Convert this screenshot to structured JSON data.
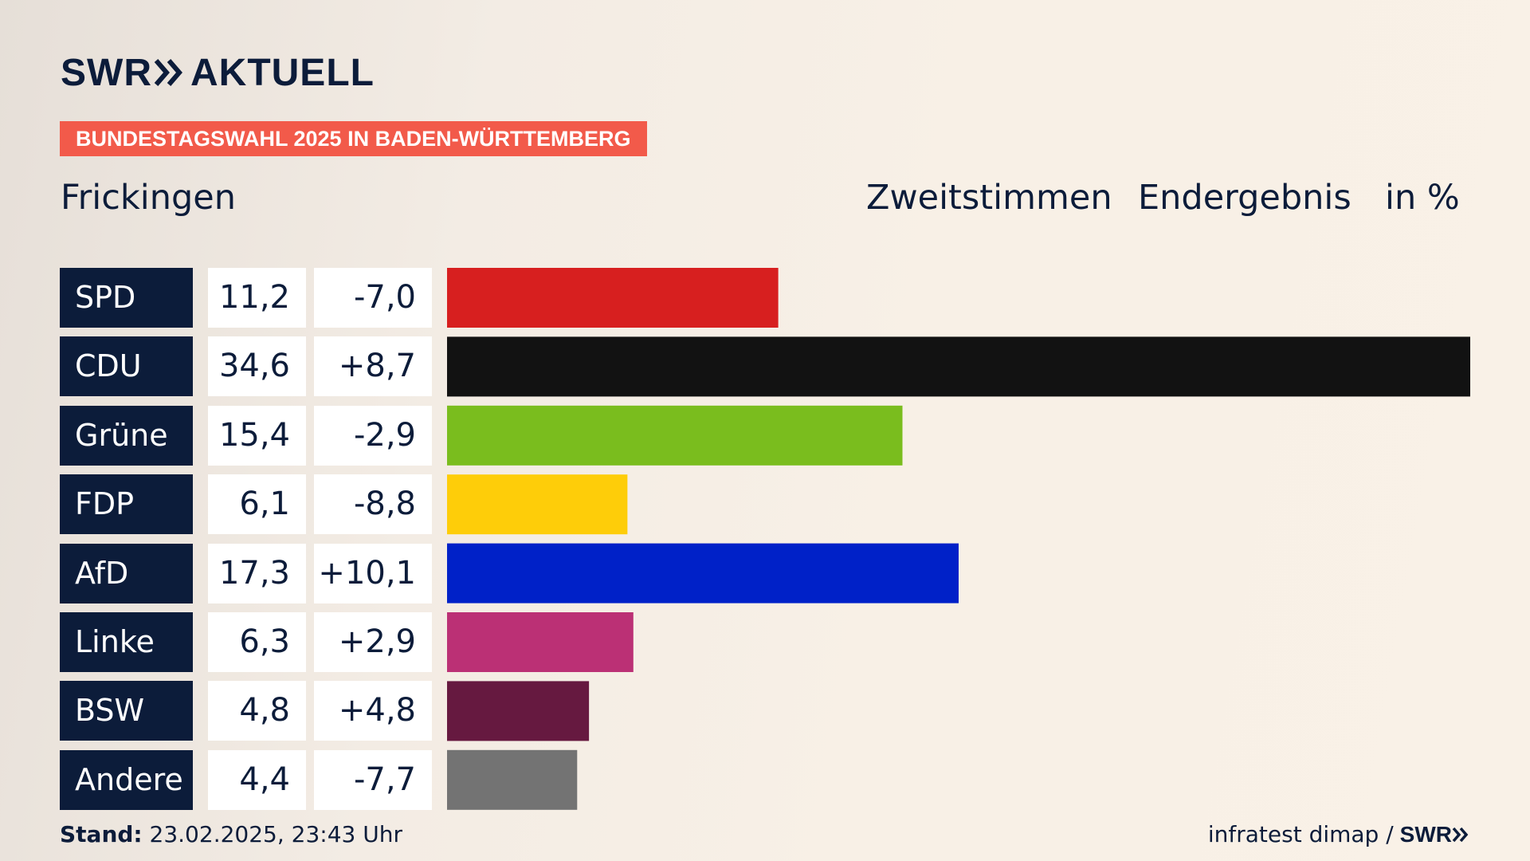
{
  "brand": {
    "swr": "SWR",
    "aktuell": "AKTUELL"
  },
  "tag": "BUNDESTAGSWAHL 2025 IN BADEN-WÜRTTEMBERG",
  "place": "Frickingen",
  "header": {
    "col1": "Zweitstimmen",
    "col2": "Endergebnis",
    "col3": "in %"
  },
  "footer": {
    "stand_label": "Stand:",
    "stand_value": "23.02.2025, 23:43 Uhr",
    "source": "infratest dimap /",
    "source_brand": "SWR"
  },
  "colors": {
    "navy": "#0c1c3a",
    "tag": "#f25a4a"
  },
  "chart_data": {
    "type": "bar",
    "orientation": "horizontal",
    "categories": [
      "SPD",
      "CDU",
      "Grüne",
      "FDP",
      "AfD",
      "Linke",
      "BSW",
      "Andere"
    ],
    "values": [
      11.2,
      34.6,
      15.4,
      6.1,
      17.3,
      6.3,
      4.8,
      4.4
    ],
    "value_labels": [
      "11,2",
      "34,6",
      "15,4",
      "6,1",
      "17,3",
      "6,3",
      "4,8",
      "4,4"
    ],
    "changes": [
      -7.0,
      8.7,
      -2.9,
      -8.8,
      10.1,
      2.9,
      4.8,
      -7.7
    ],
    "change_labels": [
      "-7,0",
      "+8,7",
      "-2,9",
      "-8,8",
      "+10,1",
      "+2,9",
      "+4,8",
      "-7,7"
    ],
    "colors": [
      "#d71f1f",
      "#121212",
      "#7abd1e",
      "#fecd09",
      "#0021c8",
      "#bb3075",
      "#661940",
      "#737373"
    ],
    "unit": "%"
  }
}
